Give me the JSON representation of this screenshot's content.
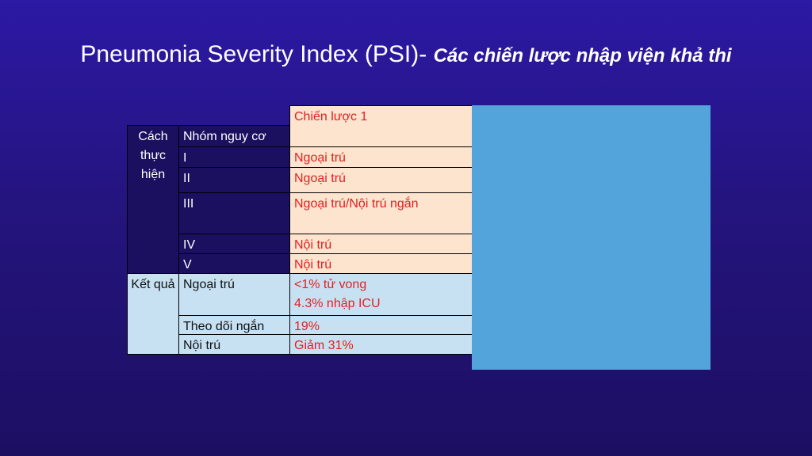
{
  "title": {
    "main": "Pneumonia Severity Index (PSI)- ",
    "emphasis": "Các chiến lược nhập viện khả thi"
  },
  "table": {
    "strategy_header": "Chiến lược 1",
    "implementation": {
      "label": "Cách thực hiện",
      "header": "Nhóm nguy cơ",
      "rows": [
        [
          "I",
          "Ngoại trú"
        ],
        [
          "II",
          "Ngoại trú"
        ],
        [
          "III",
          "Ngoại trú/Nội trú ngắn"
        ],
        [
          "IV",
          "Nội trú"
        ],
        [
          "V",
          "Nội trú"
        ]
      ]
    },
    "results": {
      "label": "Kết quả",
      "rows": [
        [
          "Ngoại trú",
          "<1% tử vong",
          "4.3% nhập ICU"
        ],
        [
          "Theo dõi ngắn",
          "19%"
        ],
        [
          "Nội trú",
          "Giảm 31%"
        ]
      ]
    }
  }
}
